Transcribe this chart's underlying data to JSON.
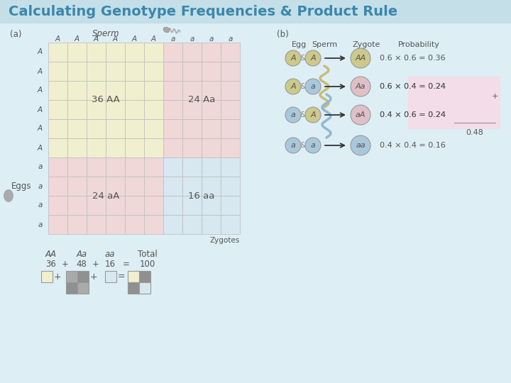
{
  "title": "Calculating Genotype Frequencies & Product Rule",
  "title_color": "#3a87ad",
  "bg_color": "#ddeef5",
  "title_bar_color": "#c5dfe8",
  "label_a": "(a)",
  "label_b": "(b)",
  "sperm_label": "Sperm",
  "eggs_label": "Eggs",
  "zygotes_label": "Zygotes",
  "col_header": [
    "A",
    "A",
    "A",
    "A",
    "A",
    "A",
    "a",
    "a",
    "a",
    "a"
  ],
  "row_header": [
    "A",
    "A",
    "A",
    "A",
    "A",
    "A",
    "a",
    "a",
    "a",
    "a"
  ],
  "n_A_col": 6,
  "n_A_row": 6,
  "n_cols": 10,
  "n_rows": 10,
  "cell_color_AA": "#f0f0d0",
  "cell_color_Aa": "#f0d8d8",
  "cell_color_aA": "#f0d8d8",
  "cell_color_aa": "#d8e8f0",
  "grid_color": "#bbbbbb",
  "label_AA": "36 AA",
  "label_Aa": "24 Aa",
  "label_aA": "24 aA",
  "label_aa": "16 aa",
  "rows_b": [
    {
      "egg": "A",
      "sperm": "A",
      "zygote": "AA",
      "prob": "0.6 × 0.6 = 0.36",
      "egg_col": "#cdc98a",
      "sperm_col": "#cdc98a",
      "zyg_col": "#cdc98a"
    },
    {
      "egg": "A",
      "sperm": "a",
      "zygote": "Aa",
      "prob": "0.6 × 0.4 = 0.24",
      "egg_col": "#cdc98a",
      "sperm_col": "#aac8dc",
      "zyg_col": "#e0c0c8"
    },
    {
      "egg": "a",
      "sperm": "A",
      "zygote": "aA",
      "prob": "0.4 × 0.6 = 0.24",
      "egg_col": "#aac8dc",
      "sperm_col": "#cdc98a",
      "zyg_col": "#e0c0c8"
    },
    {
      "egg": "a",
      "sperm": "a",
      "zygote": "aa",
      "prob": "0.4 × 0.4 = 0.16",
      "egg_col": "#aac8dc",
      "sperm_col": "#aac8dc",
      "zyg_col": "#aac8dc"
    }
  ],
  "text_color": "#555555",
  "gray_color": "#999999",
  "sq_cream": "#f0f0d0",
  "sq_gray1": "#909090",
  "sq_gray2": "#aaaaaa",
  "sq_blue": "#d8e8f0"
}
